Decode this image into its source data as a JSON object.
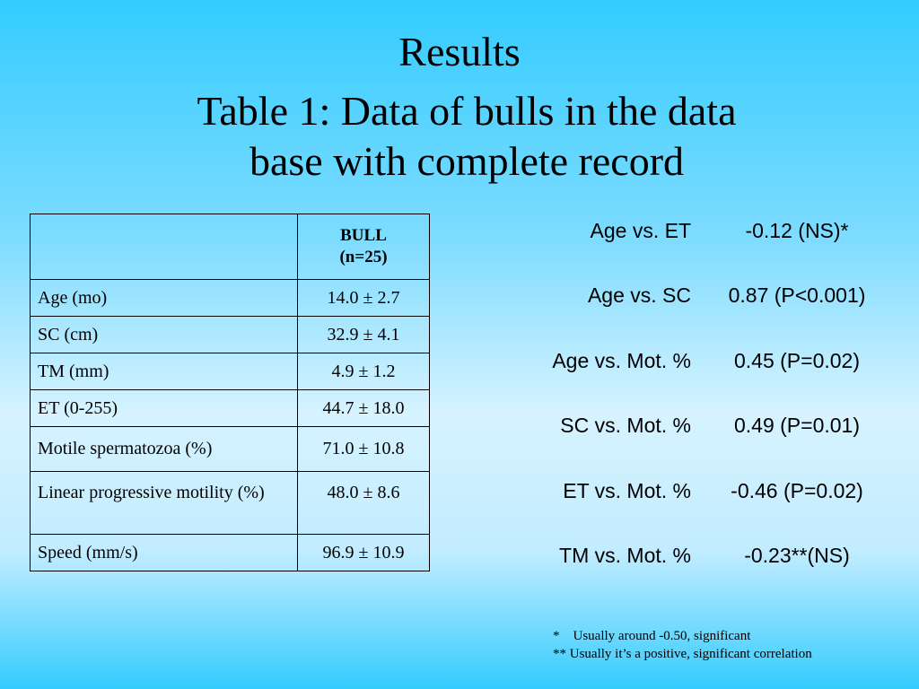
{
  "slide": {
    "title": "Results",
    "subtitle_line1": "Table 1: Data of bulls in the data",
    "subtitle_line2": "base with complete record"
  },
  "table": {
    "header": {
      "corner": "",
      "column_line1": "BULL",
      "column_line2": "(n=25)"
    },
    "rows": [
      {
        "label": "Age (mo)",
        "value": "14.0 ± 2.7"
      },
      {
        "label": "SC (cm)",
        "value": "32.9 ± 4.1"
      },
      {
        "label": "TM (mm)",
        "value": "4.9 ± 1.2"
      },
      {
        "label": "ET (0-255)",
        "value": "44.7 ± 18.0"
      },
      {
        "label": "Motile spermatozoa (%)",
        "value": "71.0 ± 10.8"
      },
      {
        "label": "Linear progressive motility (%)",
        "value": "48.0 ± 8.6"
      },
      {
        "label": "Speed (mm/s)",
        "value": "96.9 ± 10.9"
      }
    ]
  },
  "correlations": [
    {
      "pair": "Age vs. ET",
      "value": "-0.12 (NS)*"
    },
    {
      "pair": "Age vs. SC",
      "value": "0.87 (P<0.001)"
    },
    {
      "pair": "Age vs. Mot. %",
      "value": "0.45 (P=0.02)"
    },
    {
      "pair": "SC vs. Mot. %",
      "value": "0.49 (P=0.01)"
    },
    {
      "pair": "ET vs. Mot. %",
      "value": "-0.46 (P=0.02)"
    },
    {
      "pair": "TM vs. Mot. %",
      "value": "-0.23**(NS)"
    }
  ],
  "footnotes": {
    "note1": "*    Usually around -0.50, significant",
    "note2": "** Usually it’s a positive, significant correlation"
  }
}
